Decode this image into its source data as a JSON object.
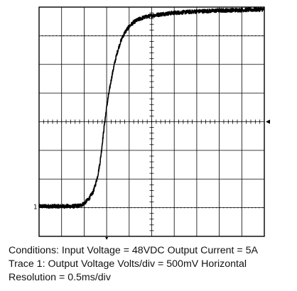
{
  "chart_data": {
    "type": "line",
    "title": "",
    "xlabel": "",
    "ylabel": "",
    "x_divisions": 10,
    "y_divisions": 8,
    "x_units": "div",
    "y_units": "div",
    "xlim": [
      0,
      10
    ],
    "ylim": [
      0,
      8
    ],
    "grid": true,
    "grid_minor_dots": true,
    "trace_marker": "1",
    "series": [
      {
        "x": [
          0.0,
          0.5,
          1.0,
          1.5,
          1.8,
          2.0,
          2.2,
          2.4,
          2.5,
          2.6,
          2.7,
          2.75,
          2.8,
          2.85,
          2.9,
          2.95,
          3.0,
          3.1,
          3.2,
          3.3,
          3.4,
          3.5,
          3.6,
          3.7,
          3.8,
          3.9,
          4.0,
          4.1,
          4.2,
          4.3,
          4.5,
          4.7,
          5.0,
          5.5,
          6.0,
          7.0,
          8.0,
          9.0,
          10.0
        ],
        "y": [
          1.05,
          1.05,
          1.05,
          1.05,
          1.07,
          1.15,
          1.3,
          1.55,
          1.8,
          2.1,
          2.55,
          2.85,
          3.2,
          3.55,
          3.9,
          4.2,
          4.5,
          5.0,
          5.45,
          5.85,
          6.2,
          6.5,
          6.75,
          6.95,
          7.1,
          7.22,
          7.32,
          7.4,
          7.47,
          7.52,
          7.6,
          7.65,
          7.7,
          7.76,
          7.8,
          7.85,
          7.88,
          7.9,
          7.92
        ],
        "noise": 0.07
      }
    ],
    "color": "#000000"
  },
  "caption": {
    "line1": "Conditions: Input Voltage = 48VDC Output Current = 5A",
    "line2": "Trace 1: Output Voltage Volts/div = 500mV Horizontal",
    "line3": "Resolution = 0.5ms/div"
  }
}
